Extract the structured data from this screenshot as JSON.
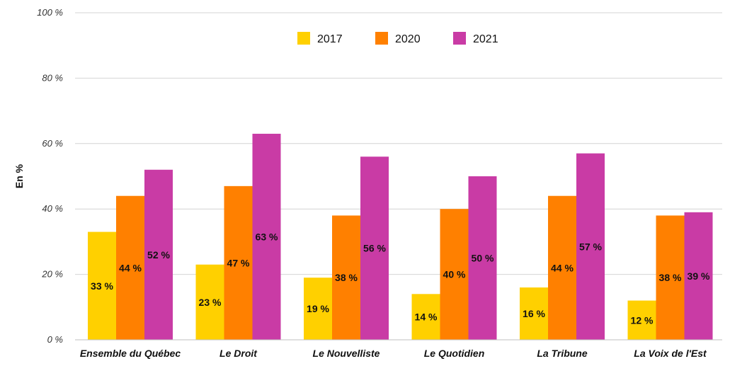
{
  "chart_data": {
    "type": "bar",
    "ylabel": "En %",
    "ylim": [
      0,
      100
    ],
    "yticks": [
      "0 %",
      "20 %",
      "40 %",
      "60 %",
      "80 %",
      "100 %"
    ],
    "ytick_values": [
      0,
      20,
      40,
      60,
      80,
      100
    ],
    "categories": [
      "Ensemble du Québec",
      "Le Droit",
      "Le Nouvelliste",
      "Le Quotidien",
      "La Tribune",
      "La Voix de l'Est"
    ],
    "series": [
      {
        "name": "2017",
        "color": "#ffd000",
        "values": [
          33,
          23,
          19,
          14,
          16,
          12
        ],
        "labels": [
          "33 %",
          "23 %",
          "19 %",
          "14 %",
          "16 %",
          "12 %"
        ]
      },
      {
        "name": "2020",
        "color": "#ff8000",
        "values": [
          44,
          47,
          38,
          40,
          44,
          38
        ],
        "labels": [
          "44 %",
          "47 %",
          "38 %",
          "40 %",
          "44 %",
          "38 %"
        ]
      },
      {
        "name": "2021",
        "color": "#c93ba5",
        "values": [
          52,
          63,
          56,
          50,
          57,
          39
        ],
        "labels": [
          "52 %",
          "63 %",
          "56 %",
          "50 %",
          "57 %",
          "39 %"
        ]
      }
    ],
    "grid": true,
    "legend_position": "top-center"
  }
}
